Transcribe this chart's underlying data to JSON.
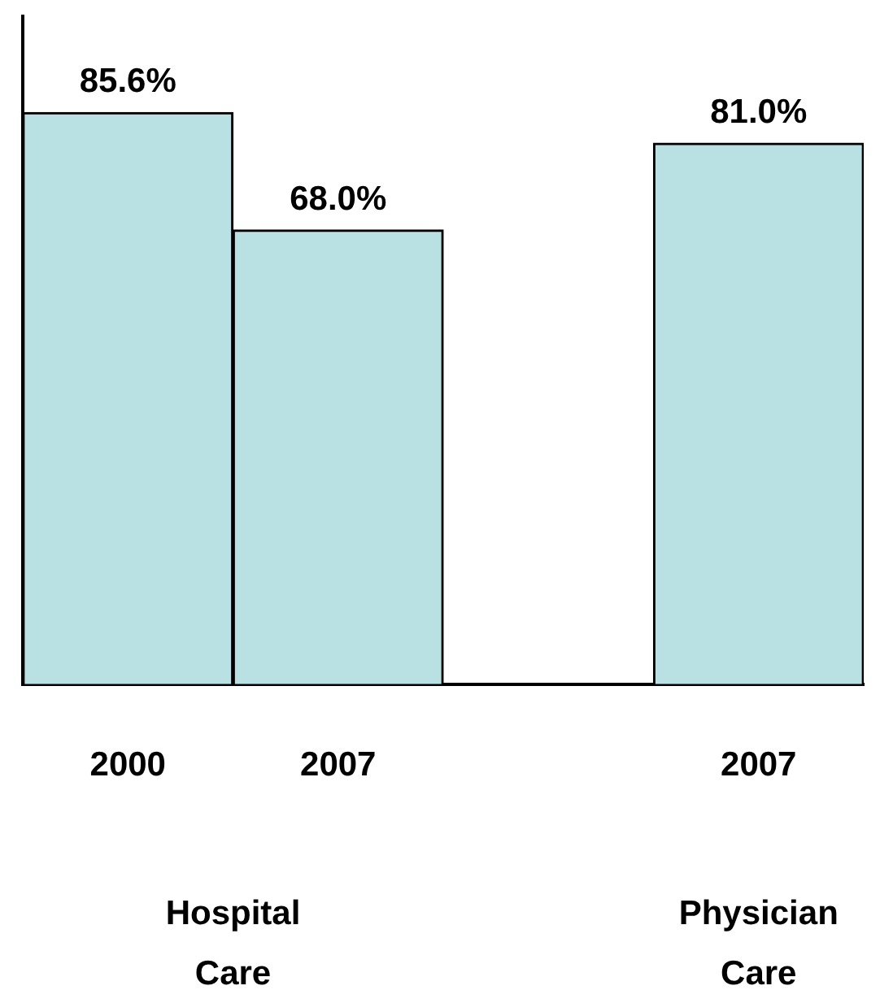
{
  "chart_data": {
    "type": "bar",
    "categories": [
      "2000",
      "2007",
      null,
      "2007"
    ],
    "values": [
      85.6,
      68.0,
      null,
      81.0
    ],
    "value_labels": [
      "85.6%",
      "68.0%",
      null,
      "81.0%"
    ],
    "color": "#b9e0e2",
    "annotations": [
      "Hospital Care",
      "Physician Care"
    ],
    "grid": false,
    "legend": false
  }
}
